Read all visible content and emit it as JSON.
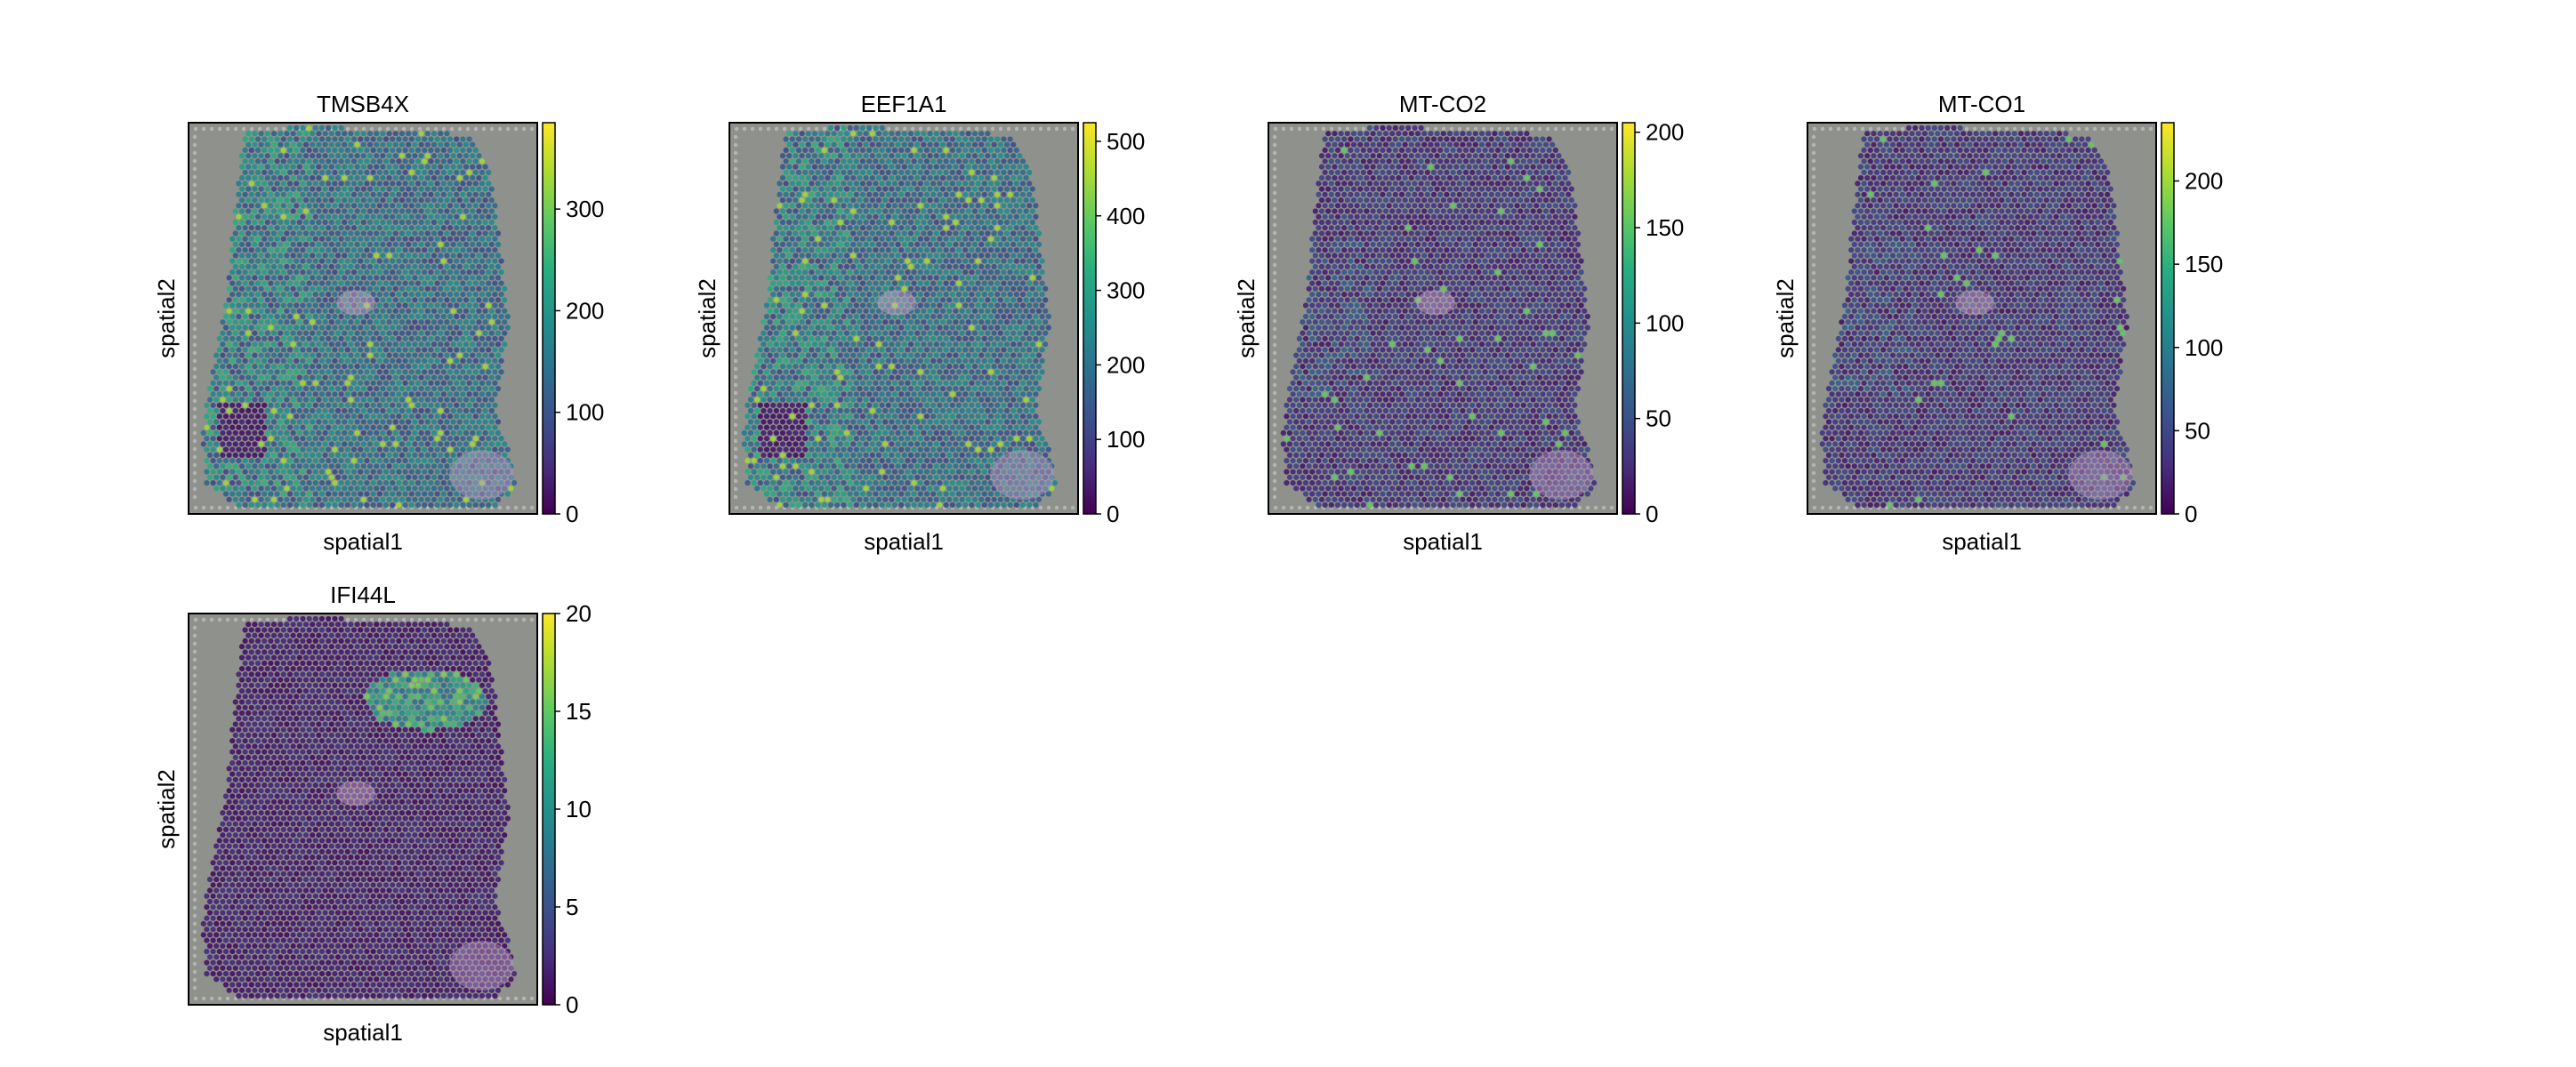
{
  "chart_data": [
    {
      "type": "heatmap",
      "title": "TMSB4X",
      "xlabel": "spatial1",
      "ylabel": "spatial2",
      "colorbar": {
        "ticks": [
          0,
          100,
          200,
          300
        ],
        "range": [
          0,
          385
        ],
        "colormap": "viridis"
      },
      "expression_profile": "high"
    },
    {
      "type": "heatmap",
      "title": "EEF1A1",
      "xlabel": "spatial1",
      "ylabel": "spatial2",
      "colorbar": {
        "ticks": [
          0,
          100,
          200,
          300,
          400,
          500
        ],
        "range": [
          0,
          525
        ],
        "colormap": "viridis"
      },
      "expression_profile": "high"
    },
    {
      "type": "heatmap",
      "title": "MT-CO2",
      "xlabel": "spatial1",
      "ylabel": "spatial2",
      "colorbar": {
        "ticks": [
          0,
          50,
          100,
          150,
          200
        ],
        "range": [
          0,
          205
        ],
        "colormap": "viridis"
      },
      "expression_profile": "low"
    },
    {
      "type": "heatmap",
      "title": "MT-CO1",
      "xlabel": "spatial1",
      "ylabel": "spatial2",
      "colorbar": {
        "ticks": [
          0,
          50,
          100,
          150,
          200
        ],
        "range": [
          0,
          235
        ],
        "colormap": "viridis"
      },
      "expression_profile": "low"
    },
    {
      "type": "heatmap",
      "title": "IFI44L",
      "xlabel": "spatial1",
      "ylabel": "spatial2",
      "colorbar": {
        "ticks": [
          0,
          5,
          10,
          15,
          20
        ],
        "range": [
          0,
          20
        ],
        "colormap": "viridis"
      },
      "expression_profile": "hotspot"
    }
  ],
  "colors": {
    "background_tissue": "#8f918c",
    "frame": "#000000",
    "viridis": [
      "#440154",
      "#472f7d",
      "#3b528b",
      "#2c728e",
      "#21918c",
      "#28ae80",
      "#5ec962",
      "#addc30",
      "#fde725"
    ]
  }
}
